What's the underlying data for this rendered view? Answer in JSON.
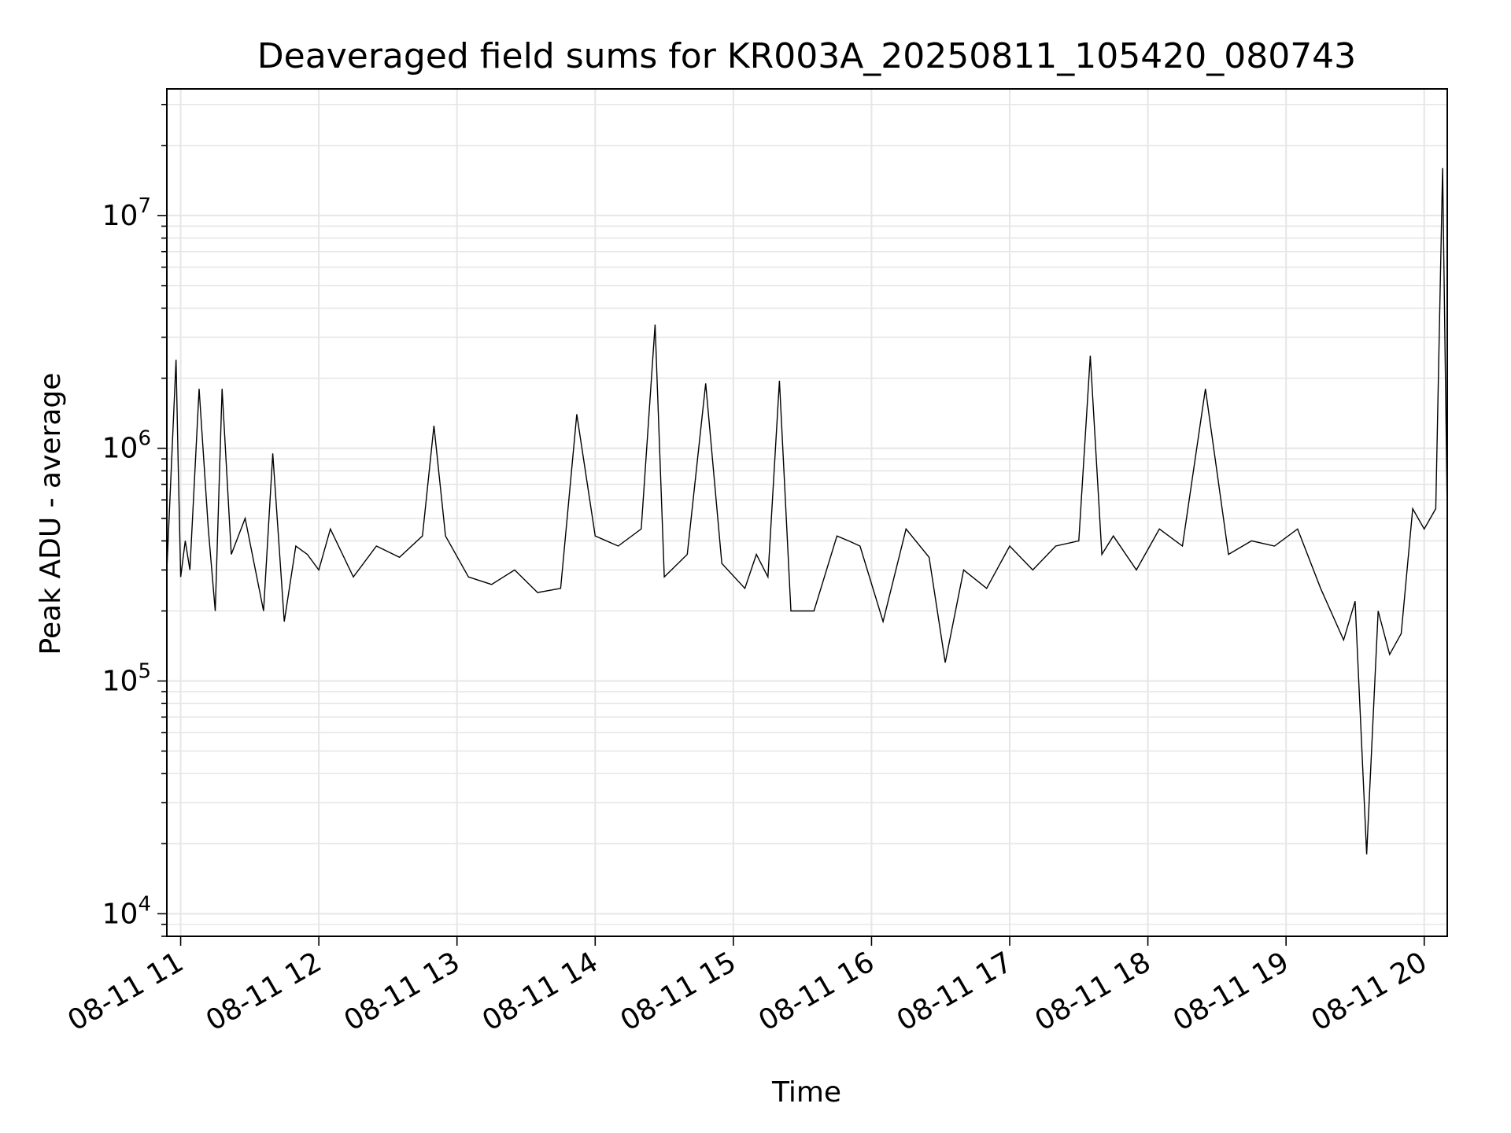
{
  "chart_data": {
    "type": "line",
    "title": "Deaveraged field sums for KR003A_20250811_105420_080743",
    "xlabel": "Time",
    "ylabel": "Peak ADU - average",
    "x_ticks": [
      "08-11 11",
      "08-11 12",
      "08-11 13",
      "08-11 14",
      "08-11 15",
      "08-11 16",
      "08-11 17",
      "08-11 18",
      "08-11 19",
      "08-11 20"
    ],
    "y_ticks": [
      "10^4",
      "10^5",
      "10^6",
      "10^7"
    ],
    "x_range": [
      "2025-08-11T10:54",
      "2025-08-11T20:10"
    ],
    "ylim": [
      8000,
      35000000
    ],
    "yscale": "log",
    "grid": true,
    "line_color": "#000000",
    "series": [
      {
        "x": [
          "2025-08-11T10:54",
          "2025-08-11T10:58",
          "2025-08-11T10:59",
          "2025-08-11T11:00",
          "2025-08-11T11:02",
          "2025-08-11T11:04",
          "2025-08-11T11:08",
          "2025-08-11T11:12",
          "2025-08-11T11:15",
          "2025-08-11T11:18",
          "2025-08-11T11:22",
          "2025-08-11T11:28",
          "2025-08-11T11:36",
          "2025-08-11T11:40",
          "2025-08-11T11:45",
          "2025-08-11T11:50",
          "2025-08-11T11:55",
          "2025-08-11T12:00",
          "2025-08-11T12:05",
          "2025-08-11T12:15",
          "2025-08-11T12:25",
          "2025-08-11T12:35",
          "2025-08-11T12:45",
          "2025-08-11T12:50",
          "2025-08-11T12:55",
          "2025-08-11T13:05",
          "2025-08-11T13:15",
          "2025-08-11T13:25",
          "2025-08-11T13:35",
          "2025-08-11T13:45",
          "2025-08-11T13:52",
          "2025-08-11T14:00",
          "2025-08-11T14:10",
          "2025-08-11T14:20",
          "2025-08-11T14:26",
          "2025-08-11T14:30",
          "2025-08-11T14:40",
          "2025-08-11T14:48",
          "2025-08-11T14:55",
          "2025-08-11T15:05",
          "2025-08-11T15:10",
          "2025-08-11T15:15",
          "2025-08-11T15:20",
          "2025-08-11T15:25",
          "2025-08-11T15:35",
          "2025-08-11T15:45",
          "2025-08-11T15:50",
          "2025-08-11T15:55",
          "2025-08-11T16:05",
          "2025-08-11T16:15",
          "2025-08-11T16:25",
          "2025-08-11T16:32",
          "2025-08-11T16:40",
          "2025-08-11T16:50",
          "2025-08-11T17:00",
          "2025-08-11T17:10",
          "2025-08-11T17:20",
          "2025-08-11T17:30",
          "2025-08-11T17:35",
          "2025-08-11T17:40",
          "2025-08-11T17:45",
          "2025-08-11T17:55",
          "2025-08-11T18:05",
          "2025-08-11T18:15",
          "2025-08-11T18:25",
          "2025-08-11T18:35",
          "2025-08-11T18:45",
          "2025-08-11T18:55",
          "2025-08-11T19:05",
          "2025-08-11T19:15",
          "2025-08-11T19:25",
          "2025-08-11T19:30",
          "2025-08-11T19:35",
          "2025-08-11T19:40",
          "2025-08-11T19:45",
          "2025-08-11T19:50",
          "2025-08-11T19:55",
          "2025-08-11T20:00",
          "2025-08-11T20:05",
          "2025-08-11T20:08",
          "2025-08-11T20:10"
        ],
        "y": [
          300000,
          2400000,
          800000,
          280000,
          400000,
          300000,
          1800000,
          450000,
          200000,
          1800000,
          350000,
          500000,
          200000,
          950000,
          180000,
          380000,
          350000,
          300000,
          450000,
          280000,
          380000,
          340000,
          420000,
          1250000,
          420000,
          280000,
          260000,
          300000,
          240000,
          250000,
          1400000,
          420000,
          380000,
          450000,
          3400000,
          280000,
          350000,
          1900000,
          320000,
          250000,
          350000,
          280000,
          1950000,
          200000,
          200000,
          420000,
          400000,
          380000,
          180000,
          450000,
          340000,
          120000,
          300000,
          250000,
          380000,
          300000,
          380000,
          400000,
          2500000,
          350000,
          420000,
          300000,
          450000,
          380000,
          1800000,
          350000,
          400000,
          380000,
          450000,
          250000,
          150000,
          220000,
          18000,
          200000,
          130000,
          160000,
          550000,
          450000,
          550000,
          16000000,
          520000
        ]
      }
    ]
  }
}
